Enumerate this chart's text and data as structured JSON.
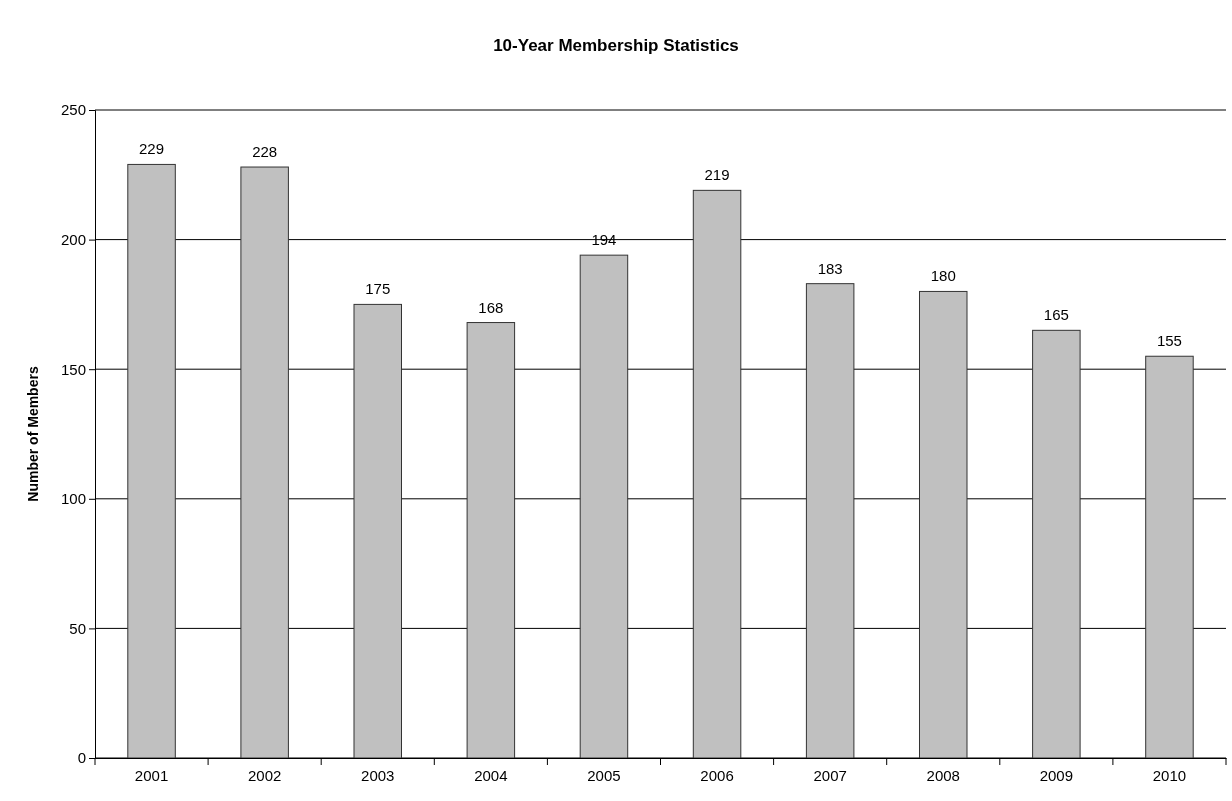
{
  "chart_data": {
    "type": "bar",
    "title": "10-Year Membership Statistics",
    "ylabel": "Number of Members",
    "categories": [
      "2001",
      "2002",
      "2003",
      "2004",
      "2005",
      "2006",
      "2007",
      "2008",
      "2009",
      "2010"
    ],
    "values": [
      229,
      228,
      175,
      168,
      194,
      219,
      183,
      180,
      165,
      155
    ],
    "color": "#c0c0c0",
    "ylim": [
      0,
      250
    ],
    "yticks": [
      0,
      50,
      100,
      150,
      200,
      250
    ],
    "grid": "y",
    "data_labels": true
  }
}
